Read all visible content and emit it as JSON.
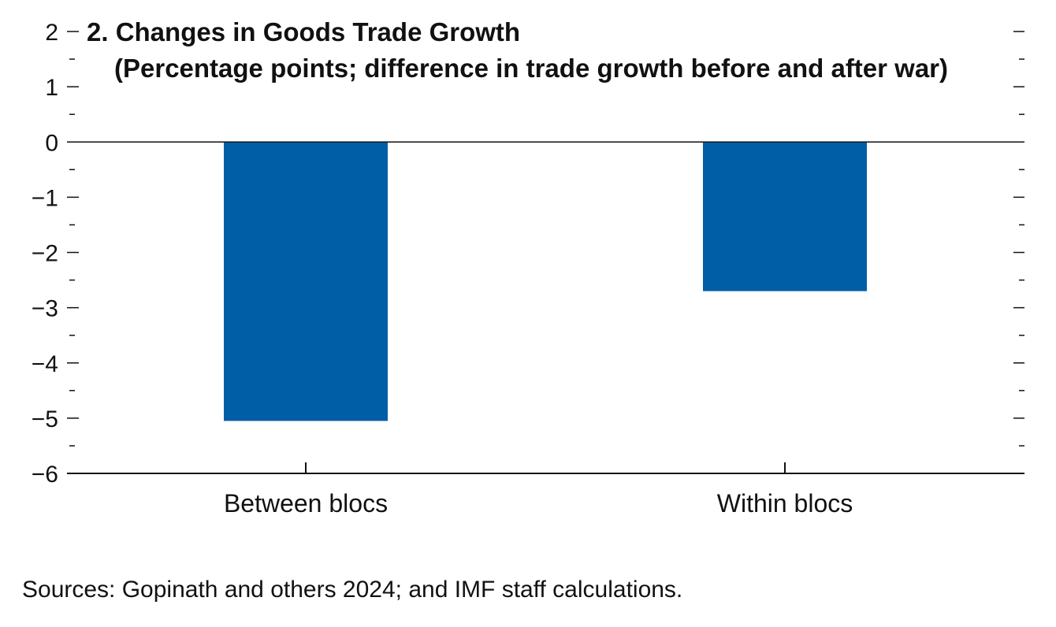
{
  "chart_data": {
    "type": "bar",
    "title": "2. Changes in Goods Trade Growth",
    "subtitle": "(Percentage points; difference in trade growth before and after war)",
    "categories": [
      "Between blocs",
      "Within blocs"
    ],
    "values": [
      -5.05,
      -2.7
    ],
    "ylim": [
      -6,
      2
    ],
    "yticks": [
      2,
      1,
      0,
      -1,
      -2,
      -3,
      -4,
      -5,
      -6
    ],
    "ytick_labels": [
      "2",
      "1",
      "0",
      "−1",
      "−2",
      "−3",
      "−4",
      "−5",
      "−6"
    ],
    "xlabel": "",
    "ylabel": "",
    "grid": false,
    "bar_color": "#005EA6"
  },
  "footer": {
    "source": "Sources: Gopinath and others 2024; and IMF staff calculations."
  }
}
